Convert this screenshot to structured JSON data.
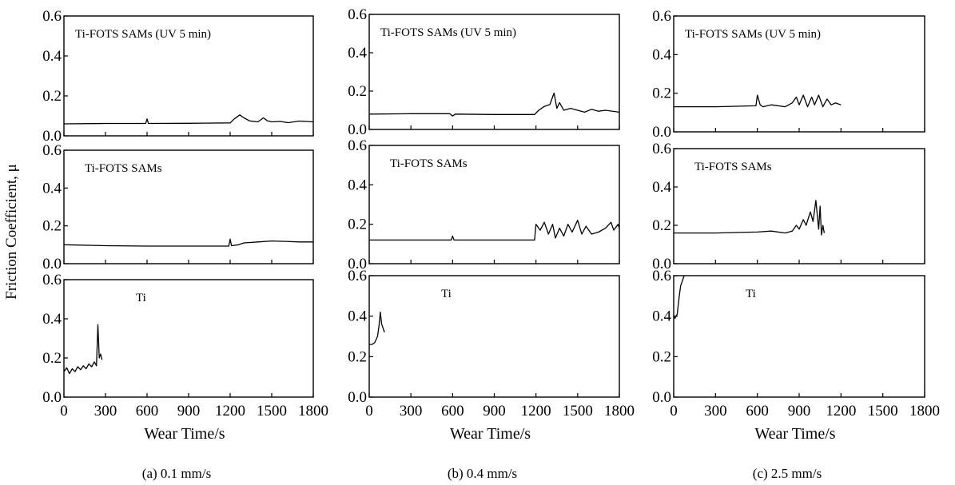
{
  "ylabel": "Friction Coefficient, μ",
  "chart_data": [
    {
      "id": "a",
      "type": "line",
      "xlabel": "Wear Time/s",
      "caption": "(a) 0.1 mm/s",
      "xlim": [
        0,
        1800
      ],
      "xticks": [
        "0",
        "300",
        "600",
        "900",
        "1200",
        "1500",
        "1800"
      ],
      "ylim": [
        0,
        0.6
      ],
      "yticks": [
        "0.0",
        "0.2",
        "0.4",
        "0.6"
      ],
      "panels": [
        {
          "label": "Ti-FOTS SAMs (UV 5 min)",
          "x": [
            0,
            300,
            590,
            600,
            610,
            900,
            1200,
            1230,
            1270,
            1300,
            1340,
            1400,
            1440,
            1470,
            1500,
            1560,
            1620,
            1700,
            1800
          ],
          "y": [
            0.06,
            0.062,
            0.062,
            0.085,
            0.062,
            0.063,
            0.065,
            0.085,
            0.105,
            0.09,
            0.075,
            0.07,
            0.09,
            0.075,
            0.07,
            0.072,
            0.066,
            0.074,
            0.07
          ]
        },
        {
          "label": "Ti-FOTS SAMs",
          "x": [
            0,
            300,
            600,
            900,
            1190,
            1200,
            1210,
            1260,
            1300,
            1400,
            1500,
            1600,
            1700,
            1800
          ],
          "y": [
            0.1,
            0.095,
            0.093,
            0.093,
            0.093,
            0.13,
            0.095,
            0.1,
            0.11,
            0.115,
            0.12,
            0.118,
            0.115,
            0.115
          ]
        },
        {
          "label": "Ti",
          "x": [
            0,
            20,
            40,
            60,
            80,
            100,
            120,
            140,
            160,
            180,
            200,
            220,
            235,
            245,
            255,
            265,
            275
          ],
          "y": [
            0.13,
            0.15,
            0.12,
            0.145,
            0.13,
            0.155,
            0.14,
            0.16,
            0.145,
            0.17,
            0.155,
            0.18,
            0.16,
            0.37,
            0.2,
            0.22,
            0.19
          ]
        }
      ]
    },
    {
      "id": "b",
      "type": "line",
      "xlabel": "Wear Time/s",
      "caption": "(b) 0.4 mm/s",
      "xlim": [
        0,
        1800
      ],
      "xticks": [
        "0",
        "300",
        "600",
        "900",
        "1200",
        "1500",
        "1800"
      ],
      "ylim": [
        0,
        0.6
      ],
      "yticks": [
        "0.0",
        "0.2",
        "0.4",
        "0.6"
      ],
      "panels": [
        {
          "label": "Ti-FOTS SAMs (UV 5 min)",
          "x": [
            0,
            300,
            580,
            600,
            620,
            900,
            1190,
            1220,
            1260,
            1300,
            1330,
            1350,
            1370,
            1400,
            1450,
            1500,
            1550,
            1600,
            1650,
            1700,
            1800
          ],
          "y": [
            0.08,
            0.082,
            0.082,
            0.07,
            0.08,
            0.078,
            0.078,
            0.1,
            0.12,
            0.13,
            0.19,
            0.11,
            0.14,
            0.1,
            0.11,
            0.1,
            0.09,
            0.105,
            0.095,
            0.1,
            0.09
          ]
        },
        {
          "label": "Ti-FOTS SAMs",
          "x": [
            0,
            300,
            590,
            600,
            610,
            900,
            1190,
            1200,
            1230,
            1260,
            1290,
            1320,
            1340,
            1370,
            1400,
            1430,
            1460,
            1500,
            1530,
            1560,
            1600,
            1650,
            1700,
            1740,
            1760,
            1790,
            1800
          ],
          "y": [
            0.12,
            0.12,
            0.12,
            0.14,
            0.12,
            0.12,
            0.12,
            0.2,
            0.17,
            0.21,
            0.15,
            0.2,
            0.13,
            0.18,
            0.14,
            0.2,
            0.16,
            0.22,
            0.15,
            0.19,
            0.15,
            0.16,
            0.18,
            0.21,
            0.17,
            0.2,
            0.18
          ]
        },
        {
          "label": "Ti",
          "x": [
            0,
            20,
            40,
            60,
            70,
            80,
            90,
            100,
            110
          ],
          "y": [
            0.26,
            0.26,
            0.27,
            0.3,
            0.35,
            0.42,
            0.36,
            0.34,
            0.32
          ]
        }
      ]
    },
    {
      "id": "c",
      "type": "line",
      "xlabel": "Wear Time/s",
      "caption": "(c) 2.5 mm/s",
      "xlim": [
        0,
        1800
      ],
      "xticks": [
        "0",
        "300",
        "600",
        "900",
        "1200",
        "1500",
        "1800"
      ],
      "ylim": [
        0,
        0.6
      ],
      "yticks": [
        "0.0",
        "0.2",
        "0.4",
        "0.6"
      ],
      "panels": [
        {
          "label": "Ti-FOTS SAMs (UV 5 min)",
          "x": [
            0,
            300,
            590,
            600,
            620,
            640,
            700,
            800,
            850,
            880,
            900,
            930,
            960,
            990,
            1010,
            1040,
            1070,
            1100,
            1130,
            1160,
            1200
          ],
          "y": [
            0.13,
            0.13,
            0.135,
            0.19,
            0.14,
            0.13,
            0.14,
            0.13,
            0.15,
            0.18,
            0.14,
            0.19,
            0.13,
            0.18,
            0.14,
            0.19,
            0.13,
            0.17,
            0.14,
            0.15,
            0.14
          ]
        },
        {
          "label": "Ti-FOTS SAMs",
          "x": [
            0,
            300,
            600,
            700,
            800,
            850,
            880,
            900,
            930,
            950,
            980,
            1000,
            1020,
            1040,
            1050,
            1060,
            1070,
            1080
          ],
          "y": [
            0.16,
            0.16,
            0.165,
            0.17,
            0.16,
            0.17,
            0.2,
            0.18,
            0.23,
            0.2,
            0.27,
            0.22,
            0.33,
            0.18,
            0.3,
            0.15,
            0.2,
            0.16
          ]
        },
        {
          "label": "Ti",
          "x": [
            0,
            10,
            25,
            40,
            50,
            60,
            75
          ],
          "y": [
            0.4,
            0.39,
            0.41,
            0.5,
            0.55,
            0.57,
            0.6
          ]
        }
      ]
    }
  ]
}
